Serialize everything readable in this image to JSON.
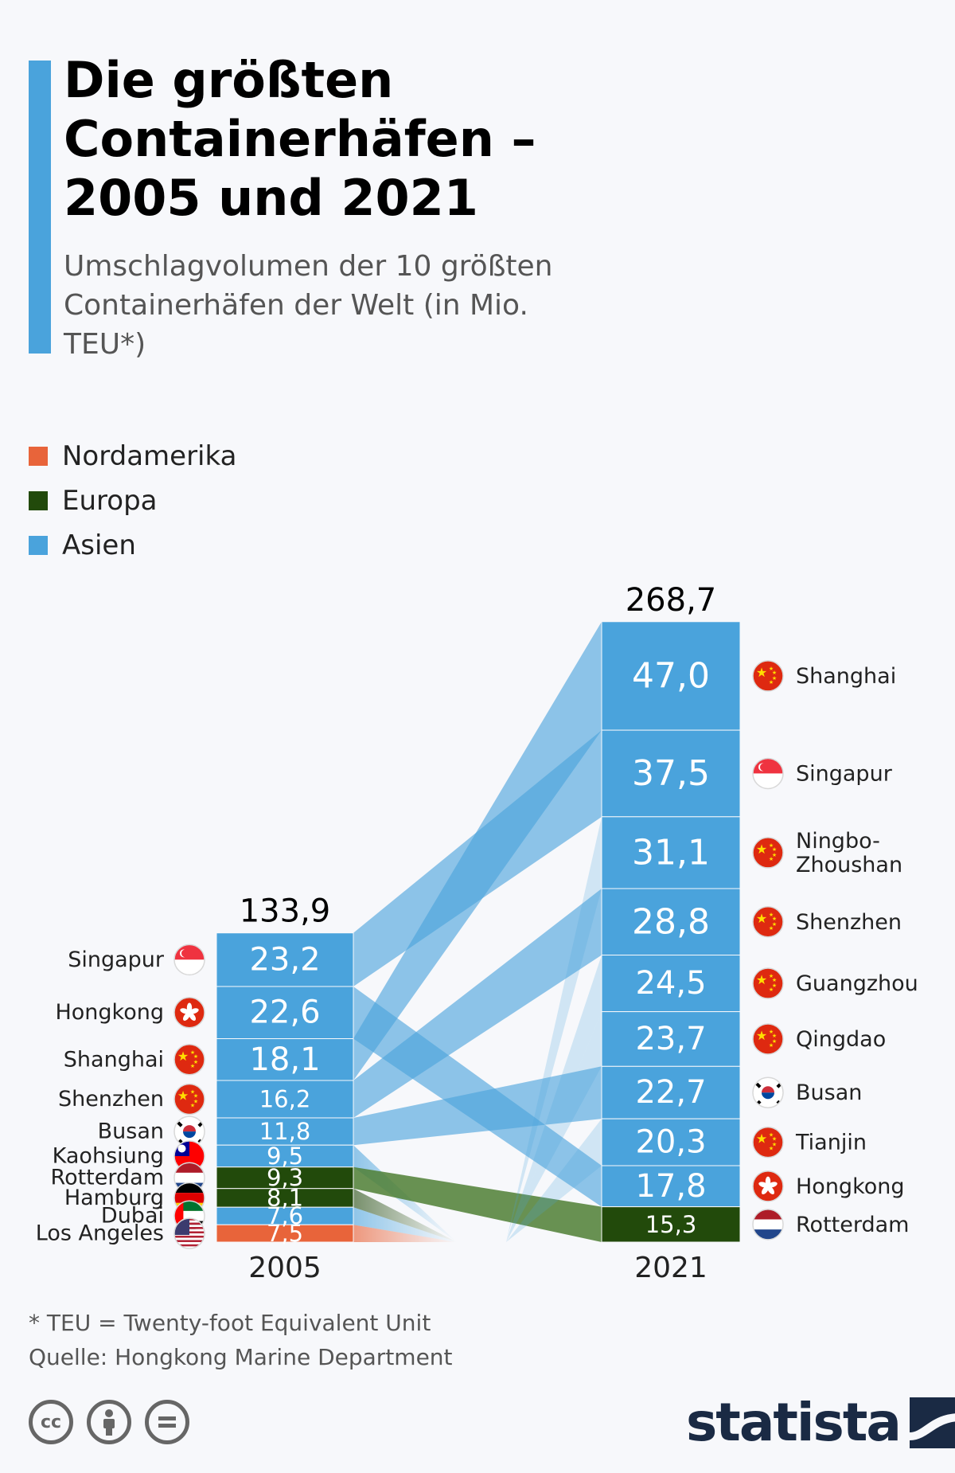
{
  "title": "Die größten Containerhäfen – 2005 und 2021",
  "subtitle": "Umschlagvolumen der 10 größten Containerhäfen der Welt (in Mio. TEU*)",
  "legend": [
    {
      "label": "Nordamerika",
      "color": "#e8643a"
    },
    {
      "label": "Europa",
      "color": "#224a0b"
    },
    {
      "label": "Asien",
      "color": "#4aa3dc"
    }
  ],
  "footnote": "* TEU = Twenty-foot Equivalent Unit",
  "source": "Quelle: Hongkong Marine Department",
  "license_icons": [
    "cc-icon",
    "by-icon",
    "nd-icon"
  ],
  "brand": "statista",
  "chart_data": {
    "type": "stacked-bar-flow",
    "columns": [
      {
        "year": "2005",
        "total": "133,9",
        "ports": [
          {
            "name": "Singapur",
            "value": 23.2,
            "label": "23,2",
            "region": "Asien",
            "flag": "singapore-flag-icon"
          },
          {
            "name": "Hongkong",
            "value": 22.6,
            "label": "22,6",
            "region": "Asien",
            "flag": "hongkong-flag-icon"
          },
          {
            "name": "Shanghai",
            "value": 18.1,
            "label": "18,1",
            "region": "Asien",
            "flag": "china-flag-icon"
          },
          {
            "name": "Shenzhen",
            "value": 16.2,
            "label": "16,2",
            "region": "Asien",
            "flag": "china-flag-icon"
          },
          {
            "name": "Busan",
            "value": 11.8,
            "label": "11,8",
            "region": "Asien",
            "flag": "korea-flag-icon"
          },
          {
            "name": "Kaohsiung",
            "value": 9.5,
            "label": "9,5",
            "region": "Asien",
            "flag": "taiwan-flag-icon"
          },
          {
            "name": "Rotterdam",
            "value": 9.3,
            "label": "9,3",
            "region": "Europa",
            "flag": "netherlands-flag-icon"
          },
          {
            "name": "Hamburg",
            "value": 8.1,
            "label": "8,1",
            "region": "Europa",
            "flag": "germany-flag-icon"
          },
          {
            "name": "Dubai",
            "value": 7.6,
            "label": "7,6",
            "region": "Asien",
            "flag": "uae-flag-icon"
          },
          {
            "name": "Los Angeles",
            "value": 7.5,
            "label": "7,5",
            "region": "Nordamerika",
            "flag": "usa-flag-icon"
          }
        ]
      },
      {
        "year": "2021",
        "total": "268,7",
        "ports": [
          {
            "name": "Shanghai",
            "value": 47.0,
            "label": "47,0",
            "region": "Asien",
            "flag": "china-flag-icon"
          },
          {
            "name": "Singapur",
            "value": 37.5,
            "label": "37,5",
            "region": "Asien",
            "flag": "singapore-flag-icon"
          },
          {
            "name": "Ningbo-Zhoushan",
            "value": 31.1,
            "label": "31,1",
            "region": "Asien",
            "flag": "china-flag-icon"
          },
          {
            "name": "Shenzhen",
            "value": 28.8,
            "label": "28,8",
            "region": "Asien",
            "flag": "china-flag-icon"
          },
          {
            "name": "Guangzhou",
            "value": 24.5,
            "label": "24,5",
            "region": "Asien",
            "flag": "china-flag-icon"
          },
          {
            "name": "Qingdao",
            "value": 23.7,
            "label": "23,7",
            "region": "Asien",
            "flag": "china-flag-icon"
          },
          {
            "name": "Busan",
            "value": 22.7,
            "label": "22,7",
            "region": "Asien",
            "flag": "korea-flag-icon"
          },
          {
            "name": "Tianjin",
            "value": 20.3,
            "label": "20,3",
            "region": "Asien",
            "flag": "china-flag-icon"
          },
          {
            "name": "Hongkong",
            "value": 17.8,
            "label": "17,8",
            "region": "Asien",
            "flag": "hongkong-flag-icon"
          },
          {
            "name": "Rotterdam",
            "value": 15.3,
            "label": "15,3",
            "region": "Europa",
            "flag": "netherlands-flag-icon"
          }
        ]
      }
    ]
  }
}
